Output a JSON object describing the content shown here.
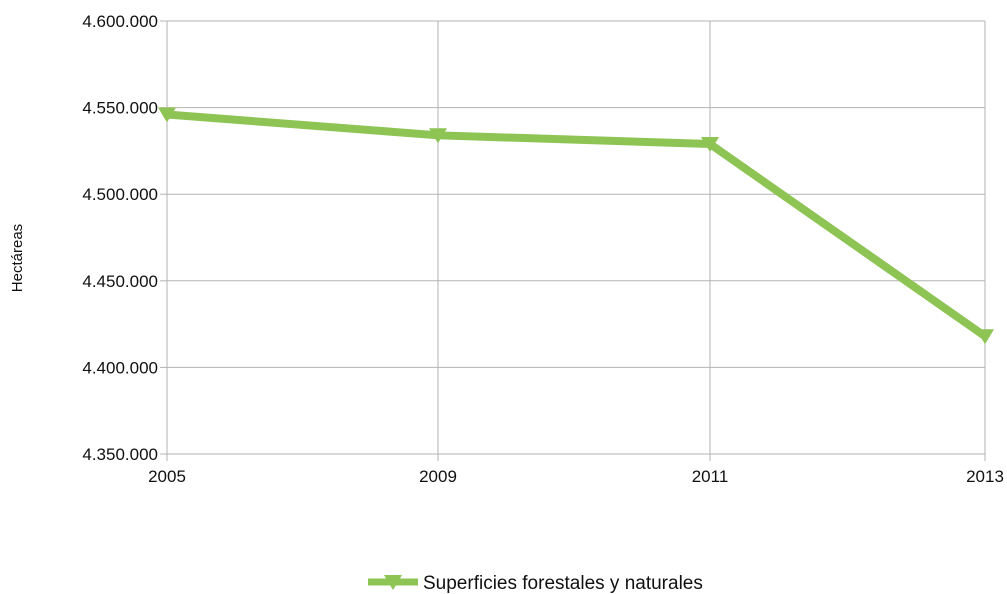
{
  "chart_data": {
    "type": "line",
    "title": "",
    "xlabel": "",
    "ylabel": "Hectáreas",
    "categories": [
      "2005",
      "2009",
      "2011",
      "2013"
    ],
    "series": [
      {
        "name": "Superficies forestales y naturales",
        "values": [
          4546000,
          4534000,
          4529000,
          4418000
        ],
        "color": "#8dc453"
      }
    ],
    "ylim": [
      4350000,
      4600000
    ],
    "yticks": [
      4350000,
      4400000,
      4450000,
      4500000,
      4550000,
      4600000
    ],
    "ytick_labels": [
      "4.350.000",
      "4.400.000",
      "4.450.000",
      "4.500.000",
      "4.550.000",
      "4.600.000"
    ],
    "grid": true,
    "legend_position": "bottom-center",
    "marker": "triangle-down"
  }
}
